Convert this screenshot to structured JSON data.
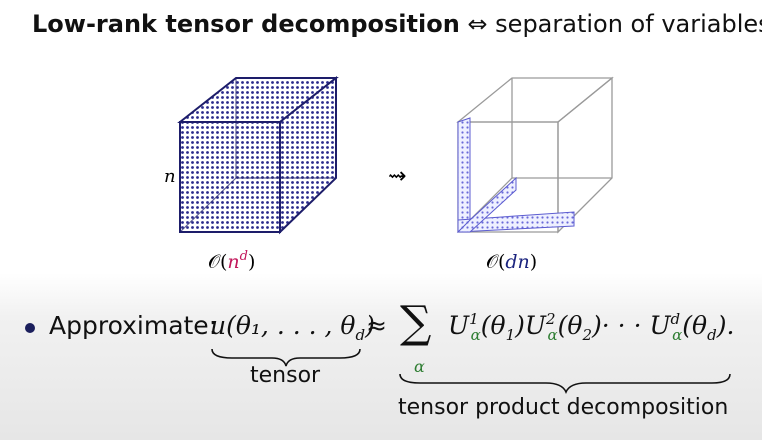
{
  "title": {
    "bold": "Low-rank tensor decomposition",
    "arrow": "⇔",
    "rest": "separation of variables:"
  },
  "figure": {
    "n_label": "n",
    "transform_arrow": "⇝",
    "left_caption_pre": "𝒪(",
    "left_caption_main": "n",
    "left_caption_sup": "d",
    "left_caption_post": ")",
    "right_caption_pre": "𝒪(",
    "right_caption_main": "dn",
    "right_caption_post": ")"
  },
  "bullet": {
    "label": "Approximate:",
    "lhs": "u(θ₁, . . . , θ",
    "lhs_sub": "d",
    "lhs_close": ")",
    "approx": "≈",
    "sum": "∑",
    "sum_sub": "α",
    "rhs": "U",
    "rhs_tail": "· · · U",
    "rhs_end": "(θ",
    "rhs_d": "d",
    "period": ").",
    "under_lhs": "tensor",
    "under_rhs": "tensor product decomposition"
  },
  "colors": {
    "cube_fill": "#2a2a8c",
    "sparse_fill": "#6a6ad8",
    "accent_red": "#c2185b",
    "accent_green": "#2e7d32"
  }
}
